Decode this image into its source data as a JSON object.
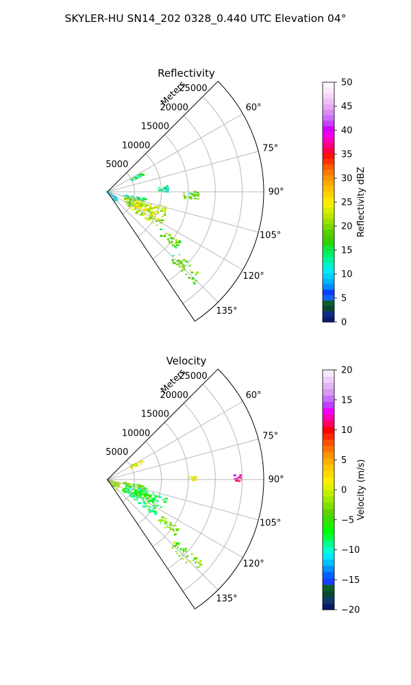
{
  "figure": {
    "suptitle": "SKYLER-HU  SN14_202  0328_0.440 UTC Elevation 04°"
  },
  "chart_data": [
    {
      "type": "polar_sector",
      "title": "Reflectivity",
      "range_label": "Meters",
      "range_ticks": [
        5000,
        10000,
        15000,
        20000,
        25000
      ],
      "range_tick_labels": [
        "5000",
        "10000",
        "15000",
        "20000",
        "25000"
      ],
      "rmax": 29000,
      "azimuth_range_deg": [
        45,
        146
      ],
      "azimuth_ticks": [
        60,
        75,
        90,
        105,
        120,
        135
      ],
      "azimuth_tick_labels": [
        "60°",
        "75°",
        "90°",
        "105°",
        "120°",
        "135°"
      ],
      "grid": true,
      "colorbar": {
        "label": "Reflectivity dBZ",
        "range": [
          0,
          50
        ],
        "ticks": [
          0,
          5,
          10,
          15,
          20,
          25,
          30,
          35,
          40,
          45,
          50
        ],
        "tick_labels": [
          "0",
          "5",
          "10",
          "15",
          "20",
          "25",
          "30",
          "35",
          "40",
          "45",
          "50"
        ]
      },
      "echo_regions": [
        {
          "az": [
            121,
            140
          ],
          "r": [
            0,
            2500
          ],
          "value": 12
        },
        {
          "az": [
            60,
            66
          ],
          "r": [
            5000,
            7500
          ],
          "value": 13
        },
        {
          "az": [
            100,
            106
          ],
          "r": [
            3000,
            7500
          ],
          "value": 13
        },
        {
          "az": [
            104,
            126
          ],
          "r": [
            3500,
            11500
          ],
          "value": 21
        },
        {
          "az": [
            107,
            117
          ],
          "r": [
            5000,
            9500
          ],
          "value": 24
        },
        {
          "az": [
            124,
            130
          ],
          "r": [
            12000,
            16500
          ],
          "value": 19
        },
        {
          "az": [
            131,
            137
          ],
          "r": [
            17000,
            23500
          ],
          "value": 19
        },
        {
          "az": [
            84,
            90
          ],
          "r": [
            9500,
            11500
          ],
          "value": 13
        },
        {
          "az": [
            90,
            96
          ],
          "r": [
            14000,
            17000
          ],
          "value": 18
        }
      ]
    },
    {
      "type": "polar_sector",
      "title": "Velocity",
      "range_label": "Meters",
      "range_ticks": [
        5000,
        10000,
        15000,
        20000,
        25000
      ],
      "range_tick_labels": [
        "5000",
        "10000",
        "15000",
        "20000",
        "25000"
      ],
      "rmax": 29000,
      "azimuth_range_deg": [
        45,
        146
      ],
      "azimuth_ticks": [
        60,
        75,
        90,
        105,
        120,
        135
      ],
      "azimuth_tick_labels": [
        "60°",
        "75°",
        "90°",
        "105°",
        "120°",
        "135°"
      ],
      "grid": true,
      "colorbar": {
        "label": "Velocity (m/s)",
        "range": [
          -20,
          20
        ],
        "ticks": [
          -20,
          -15,
          -10,
          -5,
          0,
          5,
          10,
          15,
          20
        ],
        "tick_labels": [
          "−20",
          "−15",
          "−10",
          "−5",
          "0",
          "5",
          "10",
          "15",
          "20"
        ]
      },
      "echo_regions": [
        {
          "az": [
            105,
            140
          ],
          "r": [
            0,
            2500
          ],
          "value": -2
        },
        {
          "az": [
            60,
            66
          ],
          "r": [
            5000,
            7500
          ],
          "value": 1
        },
        {
          "az": [
            100,
            106
          ],
          "r": [
            3000,
            7500
          ],
          "value": -4
        },
        {
          "az": [
            106,
            127
          ],
          "r": [
            3500,
            11500
          ],
          "value": -8
        },
        {
          "az": [
            110,
            118
          ],
          "r": [
            5500,
            9500
          ],
          "value": -6
        },
        {
          "az": [
            124,
            130
          ],
          "r": [
            12000,
            16500
          ],
          "value": -3
        },
        {
          "az": [
            131,
            137
          ],
          "r": [
            17000,
            23500
          ],
          "value": -3
        },
        {
          "az": [
            88,
            91
          ],
          "r": [
            15000,
            16500
          ],
          "value": 2
        },
        {
          "az": [
            88,
            91
          ],
          "r": [
            23500,
            25500
          ],
          "value": 12
        }
      ]
    }
  ]
}
